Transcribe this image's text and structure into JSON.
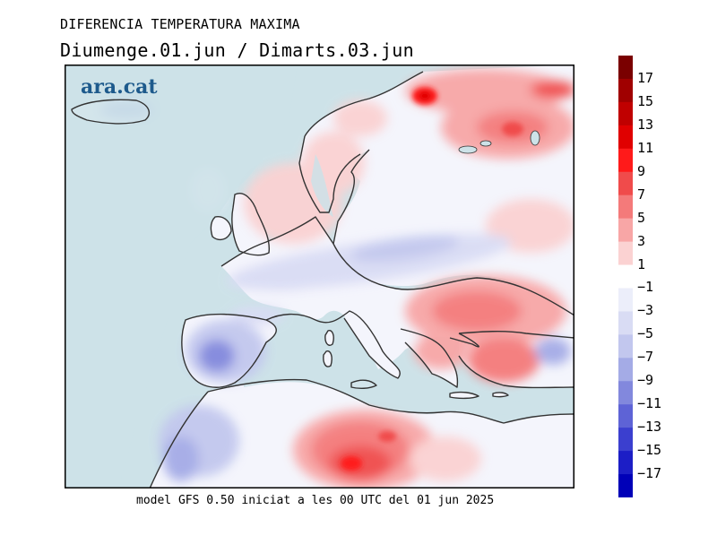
{
  "title": "DIFERENCIA TEMPERATURA MAXIMA",
  "subtitle": "Diumenge.01.jun  /  Dimarts.03.jun",
  "logo": "ara.cat",
  "footer": "model GFS 0.50 iniciat a les 00 UTC del 01 jun 2025",
  "colorbar": {
    "labels": [
      "17",
      "15",
      "13",
      "11",
      "9",
      "7",
      "5",
      "3",
      "1",
      "−1",
      "−3",
      "−5",
      "−7",
      "−9",
      "−11",
      "−13",
      "−15",
      "−17"
    ],
    "colors": [
      "#7a0000",
      "#a00000",
      "#c00000",
      "#e00000",
      "#ff1a1a",
      "#f04b4b",
      "#f47a7a",
      "#f8a6a6",
      "#fbd2d2",
      "#ffffff",
      "#eceefa",
      "#d9dcf4",
      "#c2c7ee",
      "#a4abe6",
      "#8288dd",
      "#5e63d6",
      "#3b3fcf",
      "#1c1ec6",
      "#0000b8"
    ]
  },
  "colors": {
    "sea": "#cde2e8",
    "land_neutral": "#ffffff",
    "warm": "#f47a7a",
    "hot": "#ff1a1a",
    "cool": "#c2c7ee",
    "cold": "#8288dd"
  }
}
